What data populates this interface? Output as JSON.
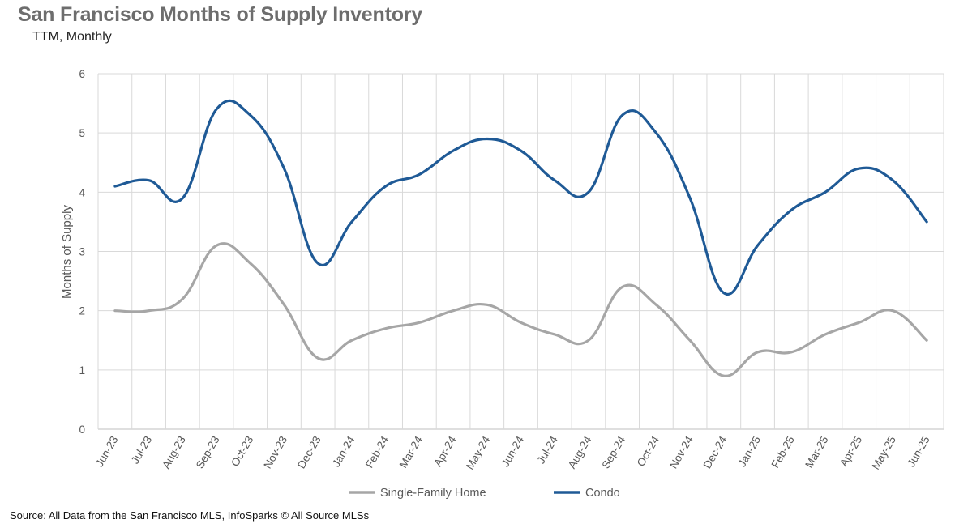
{
  "title": "San Francisco Months of Supply Inventory",
  "subtitle": "TTM, Monthly",
  "source": "Source: All Data from the San Francisco MLS, InfoSparks © All Source MLSs",
  "chart_data": {
    "type": "line",
    "ylabel": "Months of Supply",
    "ylim": [
      0,
      6
    ],
    "yticks": [
      "0",
      "1",
      "2",
      "3",
      "4",
      "5",
      "6"
    ],
    "grid": true,
    "legend": "bottom",
    "categories": [
      "Jun-23",
      "Jul-23",
      "Aug-23",
      "Sep-23",
      "Oct-23",
      "Nov-23",
      "Dec-23",
      "Jan-24",
      "Feb-24",
      "Mar-24",
      "Apr-24",
      "May-24",
      "Jun-24",
      "Jul-24",
      "Aug-24",
      "Sep-24",
      "Oct-24",
      "Nov-24",
      "Dec-24",
      "Jan-25",
      "Feb-25",
      "Mar-25",
      "Apr-25",
      "May-25",
      "Jun-25"
    ],
    "series": [
      {
        "name": "Single-Family Home",
        "color": "#a6a6a6",
        "values": [
          2.0,
          2.0,
          2.2,
          3.1,
          2.8,
          2.1,
          1.2,
          1.5,
          1.7,
          1.8,
          2.0,
          2.1,
          1.8,
          1.6,
          1.5,
          2.4,
          2.1,
          1.5,
          0.9,
          1.3,
          1.3,
          1.6,
          1.8,
          2.0,
          1.5
        ]
      },
      {
        "name": "Condo",
        "color": "#1f5a96",
        "values": [
          4.1,
          4.2,
          3.9,
          5.4,
          5.3,
          4.4,
          2.8,
          3.5,
          4.1,
          4.3,
          4.7,
          4.9,
          4.7,
          4.2,
          4.0,
          5.3,
          5.0,
          3.9,
          2.3,
          3.1,
          3.7,
          4.0,
          4.4,
          4.2,
          3.5
        ]
      }
    ]
  }
}
